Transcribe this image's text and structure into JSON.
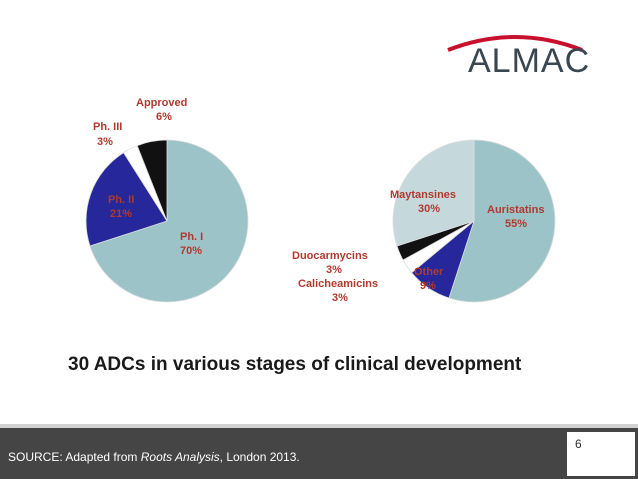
{
  "logo": {
    "text": "ALMAC",
    "accent_color": "#c8102e"
  },
  "chart_data": [
    {
      "type": "pie",
      "labels": [
        "Ph. I",
        "Ph. II",
        "Ph. III",
        "Approved"
      ],
      "percent_labels": [
        "70%",
        "21%",
        "3%",
        "6%"
      ],
      "values": [
        70,
        21,
        3,
        6
      ],
      "colors": [
        "#9cc3c8",
        "#25279b",
        "#ffffff",
        "#111111"
      ],
      "label_colors": [
        "#b03a2e",
        "#b03a2e",
        "#b03a2e",
        "#b03a2e"
      ]
    },
    {
      "type": "pie",
      "labels": [
        "Auristatins",
        "Other",
        "Calicheamicins",
        "Duocarmycins",
        "Maytansines"
      ],
      "percent_labels": [
        "55%",
        "9%",
        "3%",
        "3%",
        "30%"
      ],
      "values": [
        55,
        9,
        3,
        3,
        30
      ],
      "colors": [
        "#9cc3c8",
        "#25279b",
        "#ffffff",
        "#111111",
        "#c5d9dc"
      ],
      "label_colors": [
        "#b03a2e",
        "#b03a2e",
        "#b03a2e",
        "#b03a2e",
        "#b03a2e"
      ]
    }
  ],
  "headline": "30 ADCs in various stages of clinical development",
  "footer": {
    "source_prefix": "SOURCE: Adapted from ",
    "source_italic": "Roots Analysis",
    "source_suffix": ", London 2013.",
    "page_number": "6"
  }
}
